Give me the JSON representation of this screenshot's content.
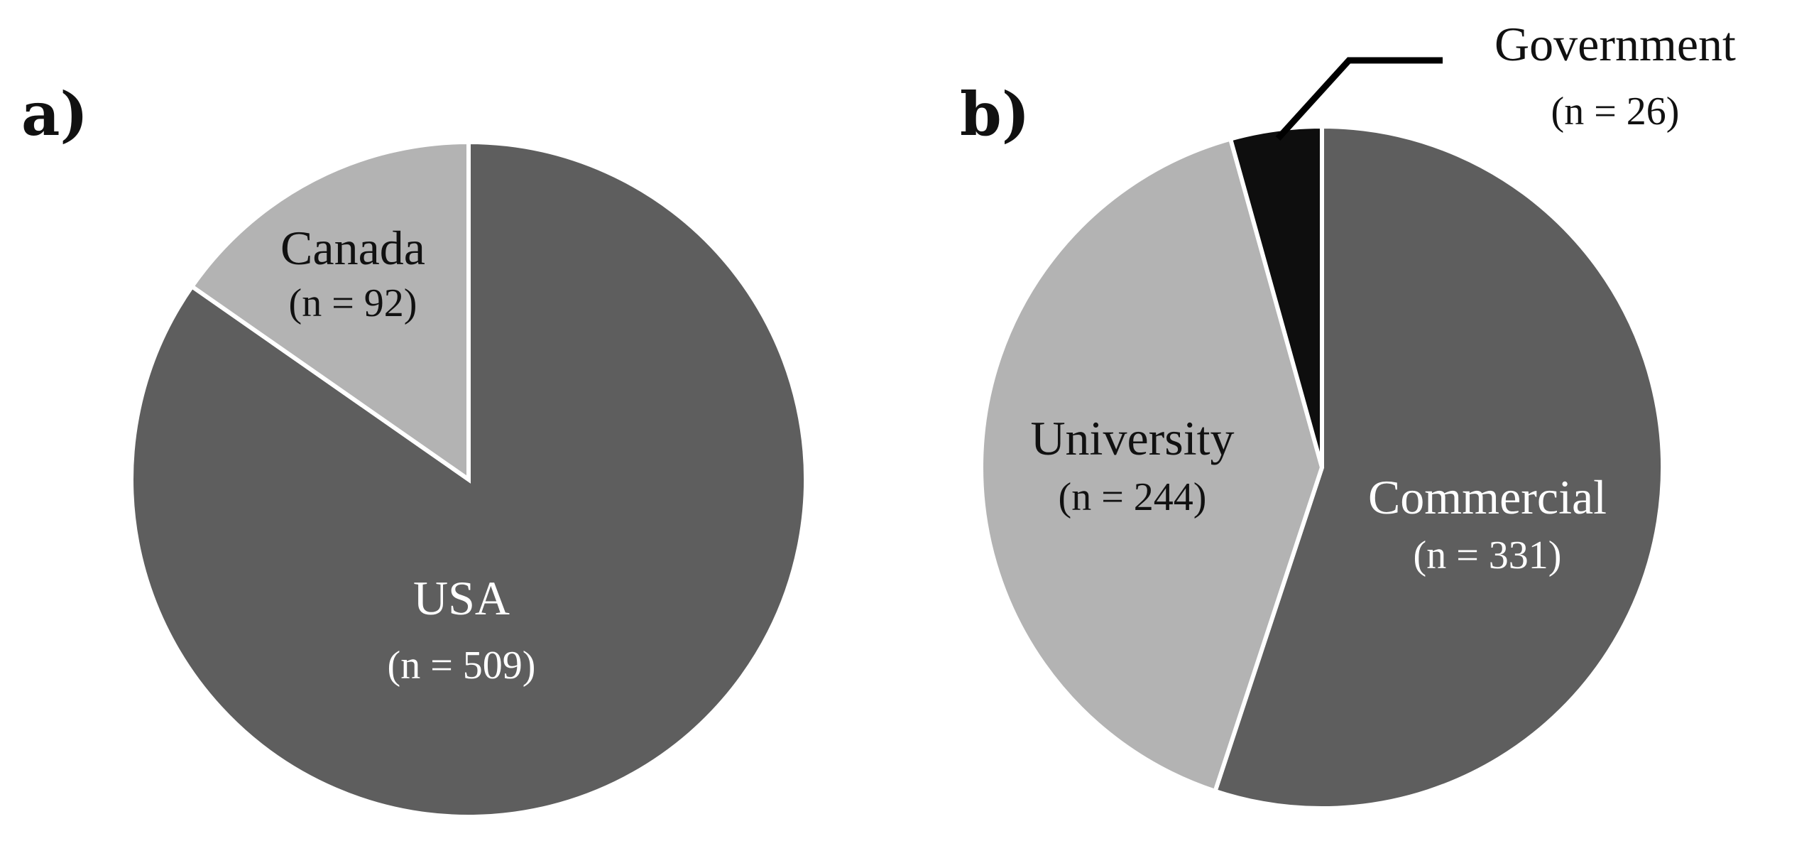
{
  "chart_data": [
    {
      "type": "pie",
      "panel": "a)",
      "start": "12 o'clock",
      "direction": "clockwise",
      "slices": [
        {
          "label": "USA",
          "count_text": "(n = 509)",
          "value": 509,
          "color": "#5e5e5e",
          "text_color": "#ffffff"
        },
        {
          "label": "Canada",
          "count_text": "(n = 92)",
          "value": 92,
          "color": "#b3b3b3",
          "text_color": "#111111"
        }
      ]
    },
    {
      "type": "pie",
      "panel": "b)",
      "start": "12 o'clock",
      "direction": "clockwise",
      "slices": [
        {
          "label": "Commercial",
          "count_text": "(n = 331)",
          "value": 331,
          "color": "#5e5e5e",
          "text_color": "#ffffff"
        },
        {
          "label": "University",
          "count_text": "(n = 244)",
          "value": 244,
          "color": "#b3b3b3",
          "text_color": "#111111"
        },
        {
          "label": "Government",
          "count_text": "(n = 26)",
          "value": 26,
          "color": "#0e0e0e",
          "text_color": "#111111",
          "label_outside": true
        }
      ]
    }
  ]
}
